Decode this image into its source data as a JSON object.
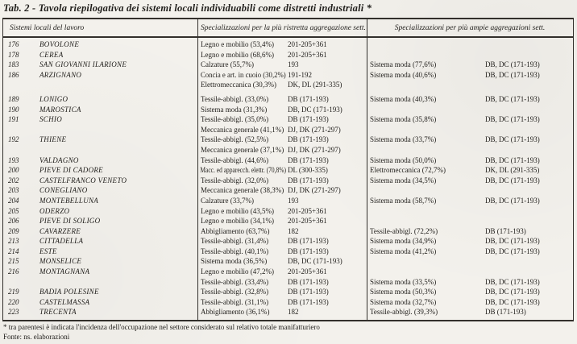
{
  "title": "Tab. 2 - Tavola riepilogativa dei sistemi locali individuabili come distretti industriali *",
  "table": {
    "headers": [
      "Sistemi locali del lavoro",
      "Specializzazioni per la più ristretta aggregazione sett.",
      "Specializzazioni per più ampie aggregazioni sett."
    ],
    "rows": [
      {
        "num": "176",
        "name": "BOVOLONE",
        "spec1": "Legno e mobilio (53,4%)",
        "code1": "201-205+361",
        "spec2": "",
        "code2": ""
      },
      {
        "num": "178",
        "name": "CEREA",
        "spec1": "Legno e mobilio (68,6%)",
        "code1": "201-205+361",
        "spec2": "",
        "code2": ""
      },
      {
        "num": "183",
        "name": "SAN GIOVANNI ILARIONE",
        "spec1": "Calzature (55,7%)",
        "code1": "193",
        "spec2": "Sistema moda (77,6%)",
        "code2": "DB, DC (171-193)"
      },
      {
        "num": "186",
        "name": "ARZIGNANO",
        "spec1": "Concia e art. in cuoio (30,2%)",
        "code1": "191-192",
        "spec2": "Sistema moda (40,6%)",
        "code2": "DB, DC (171-193)"
      },
      {
        "num": "",
        "name": "",
        "spec1": "Elettromeccanica (30,3%)",
        "code1": "DK, DL (291-335)",
        "spec2": "",
        "code2": ""
      },
      {
        "num": "189",
        "name": "LONIGO",
        "spec1": "Tessile-abbigl. (33,0%)",
        "code1": "DB (171-193)",
        "spec2": "Sistema moda (40,3%)",
        "code2": "DB, DC (171-193)",
        "gap": true
      },
      {
        "num": "190",
        "name": "MAROSTICA",
        "spec1": "Sistema moda (31,3%)",
        "code1": "DB, DC (171-193)",
        "spec2": "",
        "code2": ""
      },
      {
        "num": "191",
        "name": "SCHIO",
        "spec1": "Tessile-abbigl. (35,0%)",
        "code1": "DB (171-193)",
        "spec2": "Sistema moda (35,8%)",
        "code2": "DB, DC (171-193)"
      },
      {
        "num": "",
        "name": "",
        "spec1": "Meccanica generale (41,1%)",
        "code1": "DJ, DK (271-297)",
        "spec2": "",
        "code2": ""
      },
      {
        "num": "192",
        "name": "THIENE",
        "spec1": "Tessile-abbigl. (52,5%)",
        "code1": "DB (171-193)",
        "spec2": "Sistema moda (33,7%)",
        "code2": "DB, DC (171-193)"
      },
      {
        "num": "",
        "name": "",
        "spec1": "Meccanica generale (37,1%)",
        "code1": "DJ, DK (271-297)",
        "spec2": "",
        "code2": ""
      },
      {
        "num": "193",
        "name": "VALDAGNO",
        "spec1": "Tessile-abbigl. (44,6%)",
        "code1": "DB (171-193)",
        "spec2": "Sistema moda (50,0%)",
        "code2": "DB, DC (171-193)"
      },
      {
        "num": "200",
        "name": "PIEVE DI CADORE",
        "spec1": "Macc. ed apparecch. elettr. (70,8%)",
        "code1": "DL (300-335)",
        "spec2": "Elettromeccanica (72,7%)",
        "code2": "DK, DL (291-335)"
      },
      {
        "num": "202",
        "name": "CASTELFRANCO VENETO",
        "spec1": "Tessile-abbigl. (32,0%)",
        "code1": "DB (171-193)",
        "spec2": "Sistema moda (34,5%)",
        "code2": "DB, DC (171-193)"
      },
      {
        "num": "203",
        "name": "CONEGLIANO",
        "spec1": "Meccanica generale (38,3%)",
        "code1": "DJ, DK (271-297)",
        "spec2": "",
        "code2": ""
      },
      {
        "num": "204",
        "name": "MONTEBELLUNA",
        "spec1": "Calzature (33,7%)",
        "code1": "193",
        "spec2": "Sistema moda (58,7%)",
        "code2": "DB, DC (171-193)"
      },
      {
        "num": "205",
        "name": "ODERZO",
        "spec1": "Legno e mobilio (43,5%)",
        "code1": "201-205+361",
        "spec2": "",
        "code2": ""
      },
      {
        "num": "206",
        "name": "PIEVE DI SOLIGO",
        "spec1": "Legno e mobilio (34,1%)",
        "code1": "201-205+361",
        "spec2": "",
        "code2": ""
      },
      {
        "num": "209",
        "name": "CAVARZERE",
        "spec1": "Abbigliamento (63,7%)",
        "code1": "182",
        "spec2": "Tessile-abbigl. (72,2%)",
        "code2": "DB (171-193)"
      },
      {
        "num": "213",
        "name": "CITTADELLA",
        "spec1": "Tessile-abbigl. (31,4%)",
        "code1": "DB (171-193)",
        "spec2": "Sistema moda (34,9%)",
        "code2": "DB, DC (171-193)"
      },
      {
        "num": "214",
        "name": "ESTE",
        "spec1": "Tessile-abbigl. (40,1%)",
        "code1": "DB (171-193)",
        "spec2": "Sistema moda (41,2%)",
        "code2": "DB, DC (171-193)"
      },
      {
        "num": "215",
        "name": "MONSELICE",
        "spec1": "Sistema moda (36,5%)",
        "code1": "DB, DC (171-193)",
        "spec2": "",
        "code2": ""
      },
      {
        "num": "216",
        "name": "MONTAGNANA",
        "spec1": "Legno e mobilio (47,2%)",
        "code1": "201-205+361",
        "spec2": "",
        "code2": ""
      },
      {
        "num": "",
        "name": "",
        "spec1": "Tessile-abbigl. (33,4%)",
        "code1": "DB (171-193)",
        "spec2": "Sistema moda (33,5%)",
        "code2": "DB, DC (171-193)"
      },
      {
        "num": "219",
        "name": "BADIA POLESINE",
        "spec1": "Tessile-abbigl. (32,8%)",
        "code1": "DB (171-193)",
        "spec2": "Sistema moda (50,3%)",
        "code2": "DB, DC (171-193)"
      },
      {
        "num": "220",
        "name": "CASTELMASSA",
        "spec1": "Tessile-abbigl. (31,1%)",
        "code1": "DB (171-193)",
        "spec2": "Sistema moda (32,7%)",
        "code2": "DB, DC (171-193)"
      },
      {
        "num": "223",
        "name": "TRECENTA",
        "spec1": "Abbigliamento (36,1%)",
        "code1": "182",
        "spec2": "Tessile-abbigl. (39,3%)",
        "code2": "DB (171-193)"
      }
    ]
  },
  "footnote": "* tra parentesi è indicata l'incidenza dell'occupazione nel settore considerato sul relativo totale manifatturiero",
  "source": "Fonte: ns. elaborazioni"
}
